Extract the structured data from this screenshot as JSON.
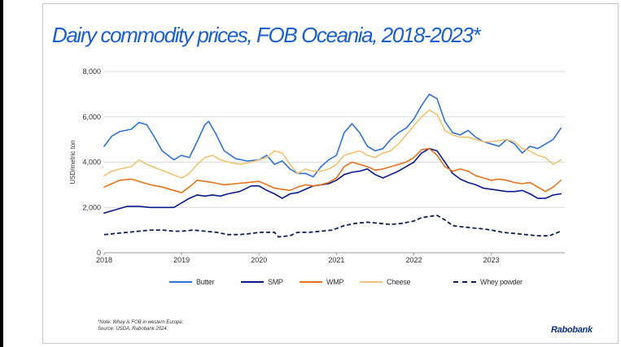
{
  "title": "Dairy commodity prices, FOB Oceania, 2018-2023*",
  "note": "*Note: Whey is FOB in western Europe.",
  "source": "Source: USDA, Rabobank 2024",
  "brand": "Rabobank",
  "chart_data": {
    "type": "line",
    "title": "Dairy commodity prices, FOB Oceania, 2018-2023*",
    "ylabel": "USD/metric ton",
    "xlabel": "",
    "ylim": [
      0,
      8000
    ],
    "xlim": [
      2018.0,
      2023.95
    ],
    "yticks": [
      0,
      2000,
      4000,
      6000,
      8000
    ],
    "ytick_labels": [
      "0",
      "2,000",
      "4,000",
      "6,000",
      "8,000"
    ],
    "xticks": [
      2018,
      2019,
      2020,
      2021,
      2022,
      2023
    ],
    "xtick_labels": [
      "2018",
      "2019",
      "2020",
      "2021",
      "2022",
      "2023"
    ],
    "grid": "horizontal",
    "legend_position": "bottom",
    "series": [
      {
        "name": "Butter",
        "color": "#2f73d8",
        "dash": "solid",
        "points": [
          [
            2018.0,
            4700
          ],
          [
            2018.1,
            5150
          ],
          [
            2018.2,
            5350
          ],
          [
            2018.35,
            5450
          ],
          [
            2018.45,
            5750
          ],
          [
            2018.55,
            5650
          ],
          [
            2018.65,
            5100
          ],
          [
            2018.75,
            4500
          ],
          [
            2018.9,
            4100
          ],
          [
            2019.0,
            4300
          ],
          [
            2019.1,
            4200
          ],
          [
            2019.2,
            4900
          ],
          [
            2019.3,
            5650
          ],
          [
            2019.35,
            5800
          ],
          [
            2019.45,
            5200
          ],
          [
            2019.55,
            4500
          ],
          [
            2019.7,
            4150
          ],
          [
            2019.85,
            4050
          ],
          [
            2020.0,
            4100
          ],
          [
            2020.1,
            4300
          ],
          [
            2020.2,
            3900
          ],
          [
            2020.3,
            4050
          ],
          [
            2020.4,
            3700
          ],
          [
            2020.5,
            3500
          ],
          [
            2020.6,
            3500
          ],
          [
            2020.7,
            3350
          ],
          [
            2020.8,
            3800
          ],
          [
            2020.9,
            4100
          ],
          [
            2021.0,
            4300
          ],
          [
            2021.1,
            5300
          ],
          [
            2021.2,
            5700
          ],
          [
            2021.3,
            5300
          ],
          [
            2021.4,
            4700
          ],
          [
            2021.5,
            4500
          ],
          [
            2021.6,
            4600
          ],
          [
            2021.7,
            5000
          ],
          [
            2021.8,
            5300
          ],
          [
            2021.9,
            5500
          ],
          [
            2022.0,
            5900
          ],
          [
            2022.1,
            6500
          ],
          [
            2022.2,
            7000
          ],
          [
            2022.3,
            6800
          ],
          [
            2022.4,
            5800
          ],
          [
            2022.5,
            5300
          ],
          [
            2022.6,
            5200
          ],
          [
            2022.7,
            5400
          ],
          [
            2022.8,
            5100
          ],
          [
            2022.9,
            4900
          ],
          [
            2023.0,
            4800
          ],
          [
            2023.1,
            4700
          ],
          [
            2023.2,
            5000
          ],
          [
            2023.3,
            4800
          ],
          [
            2023.4,
            4400
          ],
          [
            2023.5,
            4700
          ],
          [
            2023.6,
            4600
          ],
          [
            2023.7,
            4800
          ],
          [
            2023.8,
            5000
          ],
          [
            2023.9,
            5500
          ]
        ]
      },
      {
        "name": "SMP",
        "color": "#0a1a8f",
        "dash": "solid",
        "points": [
          [
            2018.0,
            1750
          ],
          [
            2018.1,
            1850
          ],
          [
            2018.2,
            1950
          ],
          [
            2018.3,
            2050
          ],
          [
            2018.45,
            2050
          ],
          [
            2018.6,
            2000
          ],
          [
            2018.75,
            2000
          ],
          [
            2018.9,
            2000
          ],
          [
            2019.0,
            2200
          ],
          [
            2019.1,
            2400
          ],
          [
            2019.2,
            2550
          ],
          [
            2019.3,
            2500
          ],
          [
            2019.4,
            2550
          ],
          [
            2019.5,
            2500
          ],
          [
            2019.6,
            2600
          ],
          [
            2019.75,
            2700
          ],
          [
            2019.9,
            2950
          ],
          [
            2020.0,
            2950
          ],
          [
            2020.1,
            2750
          ],
          [
            2020.2,
            2600
          ],
          [
            2020.3,
            2400
          ],
          [
            2020.4,
            2600
          ],
          [
            2020.5,
            2650
          ],
          [
            2020.6,
            2800
          ],
          [
            2020.7,
            2950
          ],
          [
            2020.8,
            3000
          ],
          [
            2020.9,
            3050
          ],
          [
            2021.0,
            3200
          ],
          [
            2021.1,
            3450
          ],
          [
            2021.2,
            3550
          ],
          [
            2021.3,
            3600
          ],
          [
            2021.4,
            3700
          ],
          [
            2021.5,
            3450
          ],
          [
            2021.6,
            3300
          ],
          [
            2021.7,
            3450
          ],
          [
            2021.8,
            3600
          ],
          [
            2021.9,
            3800
          ],
          [
            2022.0,
            4000
          ],
          [
            2022.1,
            4400
          ],
          [
            2022.2,
            4600
          ],
          [
            2022.3,
            4500
          ],
          [
            2022.4,
            4000
          ],
          [
            2022.5,
            3500
          ],
          [
            2022.6,
            3250
          ],
          [
            2022.7,
            3100
          ],
          [
            2022.8,
            3000
          ],
          [
            2022.9,
            2850
          ],
          [
            2023.0,
            2800
          ],
          [
            2023.1,
            2750
          ],
          [
            2023.2,
            2700
          ],
          [
            2023.3,
            2700
          ],
          [
            2023.4,
            2750
          ],
          [
            2023.5,
            2600
          ],
          [
            2023.6,
            2400
          ],
          [
            2023.7,
            2400
          ],
          [
            2023.8,
            2550
          ],
          [
            2023.9,
            2600
          ]
        ]
      },
      {
        "name": "WMP",
        "color": "#e8721c",
        "dash": "solid",
        "points": [
          [
            2018.0,
            2900
          ],
          [
            2018.1,
            3050
          ],
          [
            2018.2,
            3200
          ],
          [
            2018.35,
            3250
          ],
          [
            2018.5,
            3100
          ],
          [
            2018.6,
            3000
          ],
          [
            2018.75,
            2900
          ],
          [
            2018.9,
            2750
          ],
          [
            2019.0,
            2650
          ],
          [
            2019.1,
            2900
          ],
          [
            2019.2,
            3200
          ],
          [
            2019.3,
            3150
          ],
          [
            2019.4,
            3100
          ],
          [
            2019.55,
            3000
          ],
          [
            2019.7,
            3050
          ],
          [
            2019.85,
            3100
          ],
          [
            2020.0,
            3150
          ],
          [
            2020.1,
            3000
          ],
          [
            2020.2,
            2850
          ],
          [
            2020.3,
            2800
          ],
          [
            2020.4,
            2750
          ],
          [
            2020.5,
            2900
          ],
          [
            2020.6,
            3000
          ],
          [
            2020.7,
            2950
          ],
          [
            2020.8,
            3000
          ],
          [
            2020.9,
            3100
          ],
          [
            2021.0,
            3300
          ],
          [
            2021.1,
            3800
          ],
          [
            2021.2,
            4000
          ],
          [
            2021.3,
            3900
          ],
          [
            2021.4,
            3800
          ],
          [
            2021.5,
            3650
          ],
          [
            2021.6,
            3700
          ],
          [
            2021.7,
            3800
          ],
          [
            2021.8,
            3900
          ],
          [
            2021.9,
            4000
          ],
          [
            2022.0,
            4200
          ],
          [
            2022.1,
            4550
          ],
          [
            2022.2,
            4600
          ],
          [
            2022.3,
            4300
          ],
          [
            2022.4,
            3800
          ],
          [
            2022.5,
            3600
          ],
          [
            2022.6,
            3700
          ],
          [
            2022.7,
            3600
          ],
          [
            2022.8,
            3400
          ],
          [
            2022.9,
            3300
          ],
          [
            2023.0,
            3200
          ],
          [
            2023.1,
            3250
          ],
          [
            2023.2,
            3200
          ],
          [
            2023.3,
            3100
          ],
          [
            2023.4,
            3050
          ],
          [
            2023.5,
            3100
          ],
          [
            2023.6,
            2900
          ],
          [
            2023.7,
            2700
          ],
          [
            2023.8,
            2900
          ],
          [
            2023.9,
            3200
          ]
        ]
      },
      {
        "name": "Cheese",
        "color": "#f2c273",
        "dash": "solid",
        "points": [
          [
            2018.0,
            3400
          ],
          [
            2018.1,
            3600
          ],
          [
            2018.2,
            3700
          ],
          [
            2018.35,
            3800
          ],
          [
            2018.45,
            4100
          ],
          [
            2018.55,
            3900
          ],
          [
            2018.7,
            3700
          ],
          [
            2018.85,
            3500
          ],
          [
            2019.0,
            3300
          ],
          [
            2019.1,
            3500
          ],
          [
            2019.2,
            3900
          ],
          [
            2019.3,
            4200
          ],
          [
            2019.4,
            4300
          ],
          [
            2019.5,
            4100
          ],
          [
            2019.6,
            4000
          ],
          [
            2019.75,
            3900
          ],
          [
            2019.9,
            4000
          ],
          [
            2020.0,
            4100
          ],
          [
            2020.1,
            4200
          ],
          [
            2020.2,
            4500
          ],
          [
            2020.3,
            4400
          ],
          [
            2020.4,
            3900
          ],
          [
            2020.5,
            3500
          ],
          [
            2020.6,
            3700
          ],
          [
            2020.7,
            3600
          ],
          [
            2020.8,
            3600
          ],
          [
            2020.9,
            3700
          ],
          [
            2021.0,
            3900
          ],
          [
            2021.1,
            4300
          ],
          [
            2021.2,
            4400
          ],
          [
            2021.3,
            4500
          ],
          [
            2021.4,
            4300
          ],
          [
            2021.5,
            4200
          ],
          [
            2021.6,
            4400
          ],
          [
            2021.7,
            4500
          ],
          [
            2021.8,
            4800
          ],
          [
            2021.9,
            5200
          ],
          [
            2022.0,
            5600
          ],
          [
            2022.1,
            6000
          ],
          [
            2022.2,
            6300
          ],
          [
            2022.3,
            6100
          ],
          [
            2022.4,
            5400
          ],
          [
            2022.5,
            5200
          ],
          [
            2022.6,
            5100
          ],
          [
            2022.7,
            5100
          ],
          [
            2022.8,
            5000
          ],
          [
            2022.9,
            4900
          ],
          [
            2023.0,
            4900
          ],
          [
            2023.1,
            4950
          ],
          [
            2023.2,
            5000
          ],
          [
            2023.3,
            4900
          ],
          [
            2023.4,
            4600
          ],
          [
            2023.5,
            4500
          ],
          [
            2023.6,
            4300
          ],
          [
            2023.7,
            4200
          ],
          [
            2023.8,
            3900
          ],
          [
            2023.9,
            4100
          ]
        ]
      },
      {
        "name": "Whey powder",
        "color": "#0d1f5e",
        "dash": "dashed",
        "points": [
          [
            2018.0,
            800
          ],
          [
            2018.15,
            850
          ],
          [
            2018.3,
            900
          ],
          [
            2018.45,
            950
          ],
          [
            2018.6,
            1000
          ],
          [
            2018.75,
            1000
          ],
          [
            2018.9,
            950
          ],
          [
            2019.0,
            950
          ],
          [
            2019.15,
            1000
          ],
          [
            2019.3,
            950
          ],
          [
            2019.45,
            900
          ],
          [
            2019.6,
            800
          ],
          [
            2019.75,
            800
          ],
          [
            2019.9,
            850
          ],
          [
            2020.0,
            900
          ],
          [
            2020.1,
            900
          ],
          [
            2020.2,
            900
          ],
          [
            2020.25,
            700
          ],
          [
            2020.4,
            750
          ],
          [
            2020.5,
            900
          ],
          [
            2020.65,
            900
          ],
          [
            2020.8,
            950
          ],
          [
            2020.95,
            1000
          ],
          [
            2021.1,
            1200
          ],
          [
            2021.25,
            1300
          ],
          [
            2021.4,
            1350
          ],
          [
            2021.55,
            1300
          ],
          [
            2021.7,
            1250
          ],
          [
            2021.85,
            1300
          ],
          [
            2022.0,
            1400
          ],
          [
            2022.1,
            1550
          ],
          [
            2022.2,
            1600
          ],
          [
            2022.3,
            1650
          ],
          [
            2022.4,
            1450
          ],
          [
            2022.5,
            1200
          ],
          [
            2022.6,
            1150
          ],
          [
            2022.75,
            1100
          ],
          [
            2022.9,
            1050
          ],
          [
            2023.0,
            1000
          ],
          [
            2023.15,
            900
          ],
          [
            2023.3,
            850
          ],
          [
            2023.45,
            800
          ],
          [
            2023.6,
            750
          ],
          [
            2023.75,
            750
          ],
          [
            2023.9,
            950
          ]
        ]
      }
    ]
  }
}
